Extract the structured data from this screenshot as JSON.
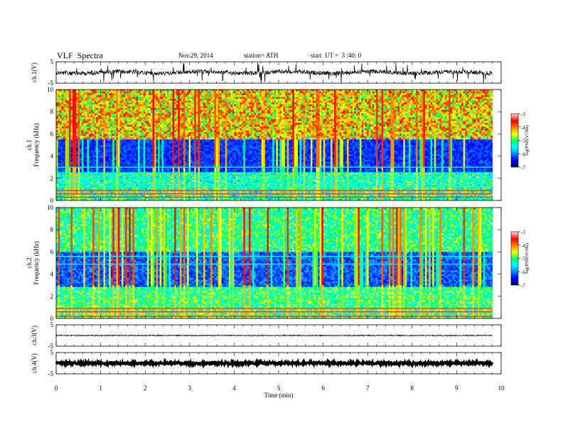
{
  "header": {
    "title": "VLF  Spectra",
    "date": "Nov.29, 2014",
    "station": "station= ATH",
    "start": "start  UT =  3 :40: 0"
  },
  "colors": {
    "waveform": "#000000",
    "colormap": [
      "#000066",
      "#0000ff",
      "#0080ff",
      "#00ffff",
      "#00ff66",
      "#ffff00",
      "#ff8000",
      "#ff0000",
      "#ffc8c8",
      "#ffffff"
    ]
  },
  "chart_data": [
    {
      "type": "line",
      "name": "ch1-waveform",
      "ylabel": "ch.1(V)",
      "ylim": [
        -5,
        5
      ],
      "yticks": [
        "5",
        "-5"
      ],
      "description_level": 1.0
    },
    {
      "type": "heatmap",
      "name": "ch1-spectrogram",
      "ylabel": "ch.1\nFrequency  (kHz)",
      "ylabel_lines": [
        "ch.1",
        "Frequency  (kHz)"
      ],
      "ylim": [
        0,
        10
      ],
      "yticks": [
        "10",
        "8",
        "6",
        "4",
        "2",
        "0"
      ],
      "colorbar": {
        "label": "log(PSD(V²/Hz)",
        "ticks": [
          "-3",
          "-4",
          "-5",
          "-6",
          "-7"
        ],
        "range": [
          -7,
          -3
        ]
      }
    },
    {
      "type": "heatmap",
      "name": "ch2-spectrogram",
      "ylabel_lines": [
        "ch.2",
        "Frequency  (kHz)"
      ],
      "ylim": [
        0,
        10
      ],
      "yticks": [
        "10",
        "8",
        "6",
        "4",
        "2",
        "0"
      ],
      "colorbar": {
        "label": "log(PSD(V²/Hz)",
        "ticks": [
          "-3",
          "-4",
          "-5",
          "-6",
          "-7"
        ],
        "range": [
          -7,
          -3
        ]
      }
    },
    {
      "type": "line",
      "name": "ch3-waveform",
      "ylabel": "ch.3(V)",
      "ylim": [
        -5,
        5
      ],
      "yticks": [
        "5",
        "-5"
      ]
    },
    {
      "type": "line",
      "name": "ch4-waveform",
      "ylabel": "ch.4(V)",
      "ylim": [
        -5,
        5
      ],
      "yticks": [
        "5",
        "-5"
      ]
    }
  ],
  "xaxis": {
    "label": "Time  (min)",
    "range": [
      0,
      10
    ],
    "ticks": [
      "0",
      "1",
      "2",
      "3",
      "4",
      "5",
      "6",
      "7",
      "8",
      "9",
      "10"
    ],
    "data_end": 9.8
  }
}
